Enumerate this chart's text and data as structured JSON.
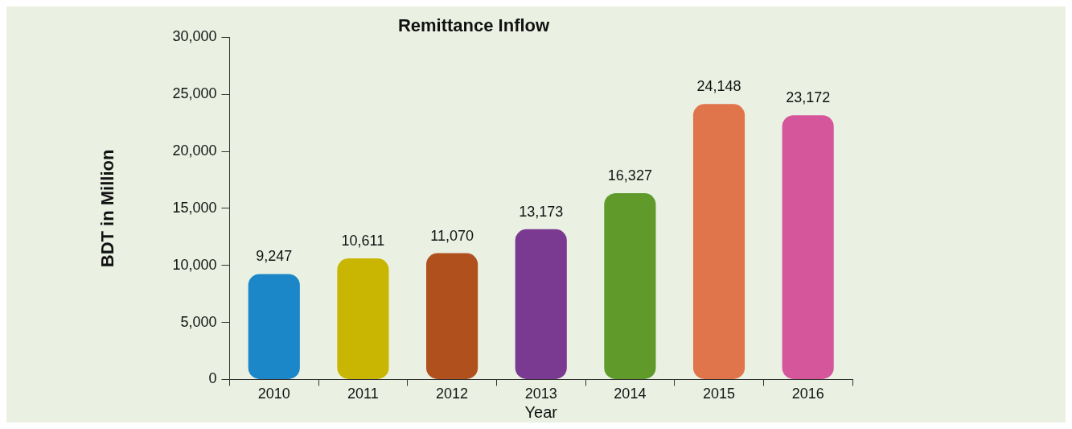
{
  "chart_data": {
    "type": "bar",
    "title": "Remittance Inflow",
    "xlabel": "Year",
    "ylabel": "BDT in Million",
    "categories": [
      "2010",
      "2011",
      "2012",
      "2013",
      "2014",
      "2015",
      "2016"
    ],
    "values": [
      9247,
      10611,
      11070,
      13173,
      16327,
      24148,
      23172
    ],
    "colors": [
      "#1b87c9",
      "#c9b602",
      "#b0501d",
      "#7b3a92",
      "#5f9a2b",
      "#e0744a",
      "#d6569c"
    ],
    "value_labels": [
      "9,247",
      "10,611",
      "11,070",
      "13,173",
      "16,327",
      "24,148",
      "23,172"
    ],
    "ylim": [
      0,
      30000
    ],
    "yticks": [
      {
        "value": 0,
        "label": "0"
      },
      {
        "value": 5000,
        "label": "5,000"
      },
      {
        "value": 10000,
        "label": "10,000"
      },
      {
        "value": 15000,
        "label": "15,000"
      },
      {
        "value": 20000,
        "label": "20,000"
      },
      {
        "value": 25000,
        "label": "25,000"
      },
      {
        "value": 30000,
        "label": "30,000"
      }
    ],
    "grid": false,
    "legend": false
  }
}
